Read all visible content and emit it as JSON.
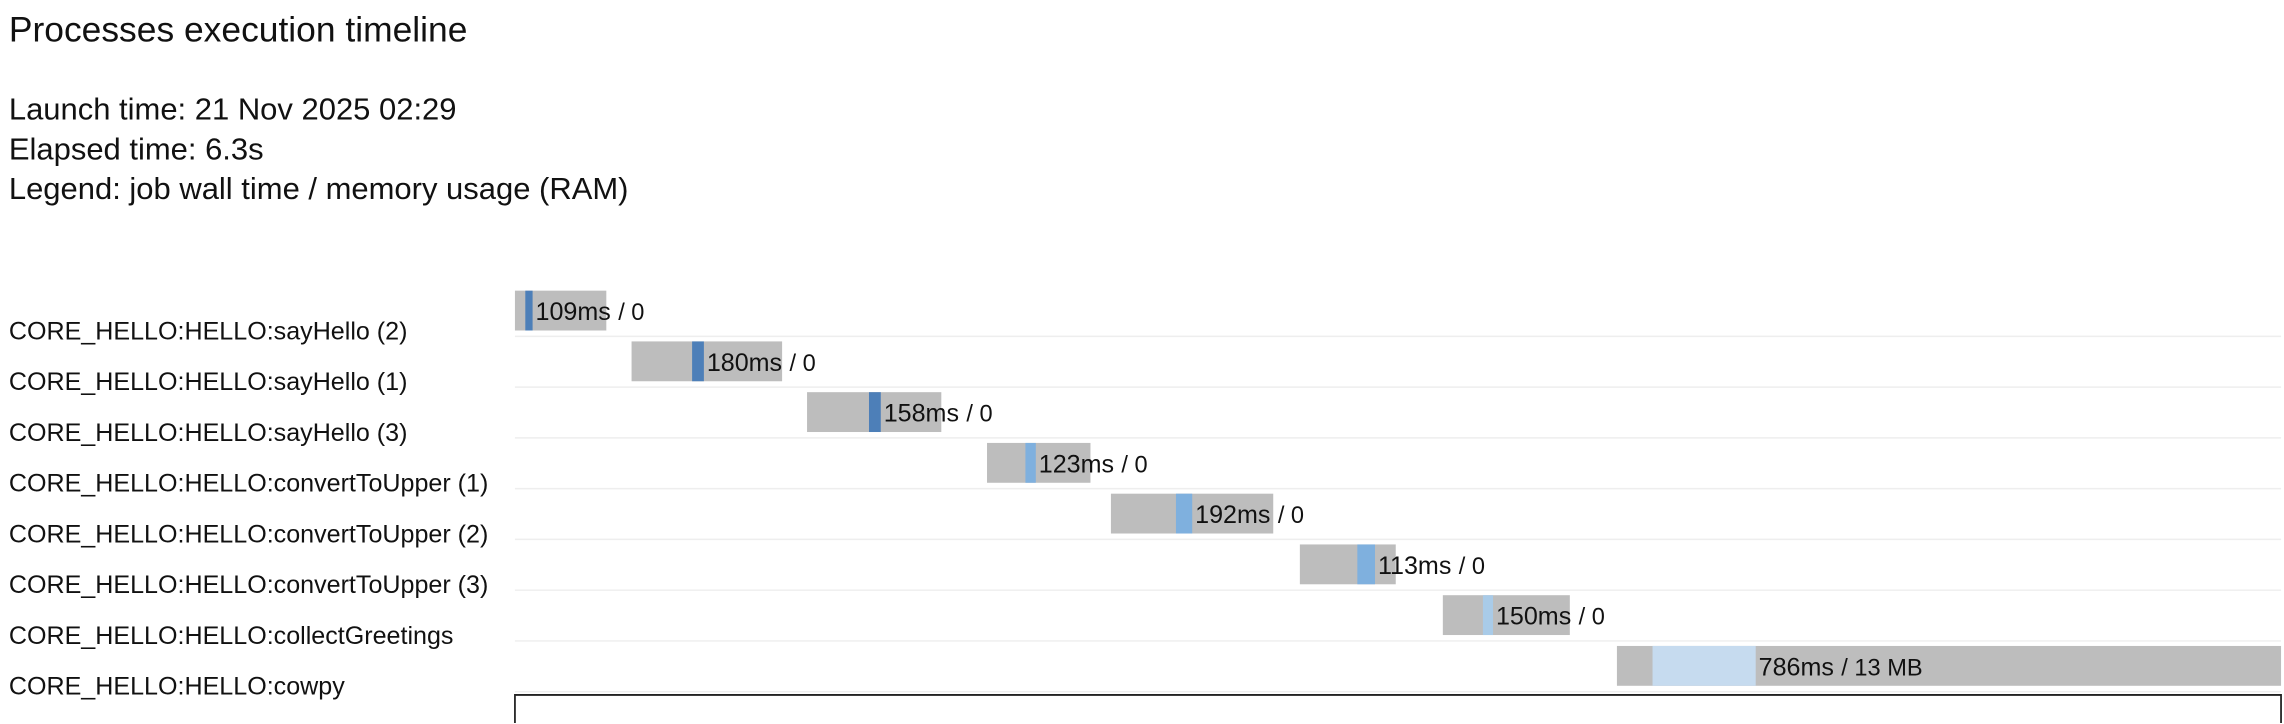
{
  "title": "Processes execution timeline",
  "info": [
    "Launch time: 21 Nov 2025 02:29",
    "Elapsed time: 6.3s",
    "Legend: job wall time / memory usage (RAM)"
  ],
  "chart_data": {
    "type": "timeline",
    "xlim": [
      0,
      6300
    ],
    "tasks": [
      {
        "name": "CORE_HELLO:HELLO:sayHello (2)",
        "wall_time": "109ms",
        "memory": "/ 0",
        "submit": 0,
        "start": 37,
        "complete": 63,
        "end": 326,
        "color": "#4d7fb8"
      },
      {
        "name": "CORE_HELLO:HELLO:sayHello (1)",
        "wall_time": "180ms",
        "memory": "/ 0",
        "submit": 416,
        "start": 632,
        "complete": 674,
        "end": 953,
        "color": "#4d7fb8"
      },
      {
        "name": "CORE_HELLO:HELLO:sayHello (3)",
        "wall_time": "158ms",
        "memory": "/ 0",
        "submit": 1042,
        "start": 1263,
        "complete": 1305,
        "end": 1521,
        "color": "#4d7fb8"
      },
      {
        "name": "CORE_HELLO:HELLO:convertToUpper (1)",
        "wall_time": "123ms",
        "memory": "/ 0",
        "submit": 1684,
        "start": 1821,
        "complete": 1858,
        "end": 2053,
        "color": "#7fb0de"
      },
      {
        "name": "CORE_HELLO:HELLO:convertToUpper (2)",
        "wall_time": "192ms",
        "memory": "/ 0",
        "submit": 2126,
        "start": 2358,
        "complete": 2416,
        "end": 2705,
        "color": "#7fb0de"
      },
      {
        "name": "CORE_HELLO:HELLO:convertToUpper (3)",
        "wall_time": "113ms",
        "memory": "/ 0",
        "submit": 2800,
        "start": 3005,
        "complete": 3068,
        "end": 3142,
        "color": "#7fb0de"
      },
      {
        "name": "CORE_HELLO:HELLO:collectGreetings",
        "wall_time": "150ms",
        "memory": "/ 0",
        "submit": 3310,
        "start": 3453,
        "complete": 3489,
        "end": 3763,
        "color": "#a9cbe8"
      },
      {
        "name": "CORE_HELLO:HELLO:cowpy",
        "wall_time": "786ms",
        "memory": "/ 13 MB",
        "submit": 3931,
        "start": 4058,
        "complete": 4426,
        "end": 6300,
        "color": "#c6dbef"
      }
    ]
  }
}
